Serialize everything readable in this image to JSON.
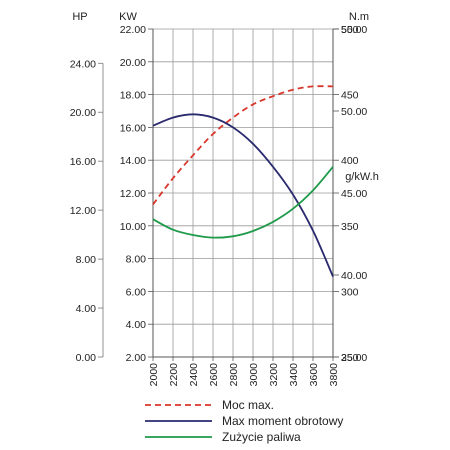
{
  "chart_data": {
    "type": "line",
    "axes": {
      "hp": {
        "label": "HP",
        "ticks": [
          "24.00",
          "20.00",
          "16.00",
          "12.00",
          "8.00",
          "4.00",
          "0.00"
        ],
        "range": [
          0,
          26.8
        ]
      },
      "kw": {
        "label": "KW",
        "ticks": [
          "22.00",
          "20.00",
          "18.00",
          "16.00",
          "14.00",
          "12.00",
          "10.00",
          "8.00",
          "6.00",
          "4.00",
          "2.00"
        ],
        "range": [
          2,
          22
        ]
      },
      "torque": {
        "label": "N.m",
        "ticks": [
          "55.00",
          "50.00",
          "45.00",
          "40.00",
          "35.00"
        ],
        "range": [
          35,
          55
        ]
      },
      "fuel": {
        "label": "g/kW.h",
        "ticks": [
          "500",
          "450",
          "400",
          "350",
          "300",
          "250"
        ],
        "range": [
          250,
          500
        ]
      },
      "x": {
        "ticks": [
          "2000",
          "2200",
          "2400",
          "2600",
          "2800",
          "3000",
          "3200",
          "3400",
          "3600",
          "3800"
        ],
        "range": [
          2000,
          3800
        ]
      }
    },
    "grid": true,
    "series": [
      {
        "name": "Moc max.",
        "axis": "kw",
        "color": "#d9362b",
        "dash": true,
        "x": [
          2000,
          2200,
          2400,
          2600,
          2800,
          3000,
          3200,
          3400,
          3600,
          3800
        ],
        "y": [
          11.3,
          12.9,
          14.3,
          15.6,
          16.6,
          17.4,
          17.9,
          18.3,
          18.5,
          18.5
        ]
      },
      {
        "name": "Max moment obrotowy",
        "axis": "torque",
        "color": "#2a2a6e",
        "dash": false,
        "x": [
          2000,
          2200,
          2400,
          2600,
          2800,
          3000,
          3200,
          3400,
          3600,
          3800
        ],
        "y": [
          49.1,
          49.6,
          49.8,
          49.6,
          49.0,
          48.0,
          46.6,
          44.9,
          42.7,
          39.9
        ]
      },
      {
        "name": "Zużycie paliwa",
        "axis": "fuel",
        "color": "#1f9a4a",
        "dash": false,
        "x": [
          2000,
          2200,
          2400,
          2600,
          2800,
          3000,
          3200,
          3400,
          3600,
          3800
        ],
        "y": [
          355,
          347,
          343,
          341,
          342,
          346,
          353,
          363,
          377,
          395
        ]
      }
    ]
  }
}
